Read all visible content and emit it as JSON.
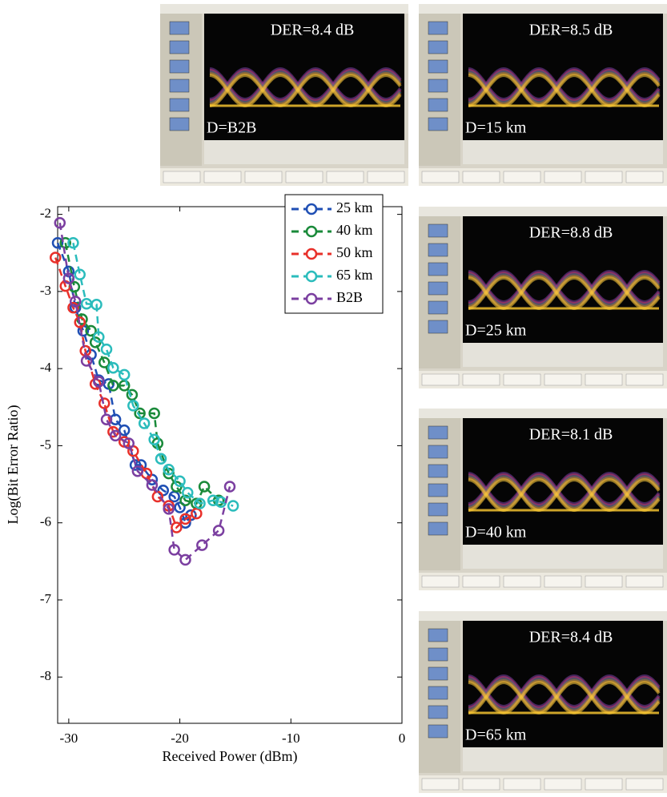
{
  "chart_data": {
    "type": "line",
    "xlabel": "Received Power (dBm)",
    "ylabel": "Log(Bit Error Ratio)",
    "xlim": [
      -31,
      0
    ],
    "xticks": [
      -30,
      -20,
      -10,
      0
    ],
    "ylim": [
      -8.6,
      -1.9
    ],
    "yticks": [
      -2,
      -3,
      -4,
      -5,
      -6,
      -7,
      -8
    ],
    "legend": "upper right",
    "dashed": true,
    "marker": "circle",
    "series": [
      {
        "name": "25 km",
        "color": "#1f4fb4",
        "x": [
          -31,
          -30,
          -29.4,
          -28.7,
          -28,
          -27.3,
          -26.4,
          -25.8,
          -25,
          -24,
          -23.5,
          -22.5,
          -21.5,
          -20.5,
          -20,
          -19.5,
          -19
        ],
        "values": [
          -2.37,
          -2.74,
          -3.21,
          -3.51,
          -3.82,
          -4.15,
          -4.2,
          -4.66,
          -4.8,
          -5.25,
          -5.25,
          -5.44,
          -5.58,
          -5.66,
          -5.8,
          -6.0,
          -5.9
        ]
      },
      {
        "name": "40 km",
        "color": "#1a8a3a",
        "x": [
          -30.3,
          -29.5,
          -28.8,
          -28,
          -27.6,
          -26.8,
          -26,
          -25,
          -24.3,
          -23.6,
          -22.3,
          -22,
          -21,
          -20.3,
          -19.5,
          -18.5,
          -17.8,
          -16.5
        ],
        "values": [
          -2.37,
          -2.94,
          -3.36,
          -3.51,
          -3.66,
          -3.92,
          -4.22,
          -4.22,
          -4.34,
          -4.58,
          -4.58,
          -4.97,
          -5.36,
          -5.53,
          -5.71,
          -5.75,
          -5.53,
          -5.71
        ]
      },
      {
        "name": "50 km",
        "color": "#e8302a",
        "x": [
          -31.2,
          -30.3,
          -29.6,
          -29,
          -28.5,
          -27.6,
          -26.8,
          -26,
          -25,
          -24.2,
          -23,
          -22,
          -21,
          -20.3,
          -19.5,
          -18.5
        ],
        "values": [
          -2.56,
          -2.93,
          -3.21,
          -3.4,
          -3.77,
          -4.2,
          -4.45,
          -4.82,
          -4.95,
          -5.07,
          -5.36,
          -5.66,
          -5.78,
          -6.06,
          -5.95,
          -5.88
        ]
      },
      {
        "name": "65 km",
        "color": "#2bbcbc",
        "x": [
          -29.6,
          -29,
          -28.4,
          -27.5,
          -27.3,
          -26.6,
          -26,
          -25,
          -24.2,
          -23.2,
          -22.3,
          -21.7,
          -21,
          -20,
          -19.3,
          -18.2,
          -17,
          -16.3,
          -15.2
        ],
        "values": [
          -2.37,
          -2.78,
          -3.16,
          -3.17,
          -3.59,
          -3.75,
          -3.99,
          -4.08,
          -4.48,
          -4.71,
          -4.92,
          -5.17,
          -5.31,
          -5.46,
          -5.61,
          -5.75,
          -5.71,
          -5.73,
          -5.78
        ]
      },
      {
        "name": "B2B",
        "color": "#7b3fa0",
        "x": [
          -30.8,
          -30,
          -29.4,
          -28.4,
          -27.3,
          -26.6,
          -25.8,
          -24.6,
          -23.8,
          -22.5,
          -21,
          -20.5,
          -19.5,
          -18,
          -16.5,
          -15.5
        ],
        "values": [
          -2.11,
          -2.83,
          -3.13,
          -3.9,
          -4.17,
          -4.66,
          -4.87,
          -4.97,
          -5.33,
          -5.51,
          -5.82,
          -6.35,
          -6.48,
          -6.29,
          -6.1,
          -5.53
        ]
      }
    ]
  },
  "eye_diagrams": [
    {
      "der": "DER=8.4 dB",
      "distance": "D=B2B"
    },
    {
      "der": "DER=8.5 dB",
      "distance": "D=15 km"
    },
    {
      "der": "DER=8.8 dB",
      "distance": "D=25 km"
    },
    {
      "der": "DER=8.1 dB",
      "distance": "D=40 km"
    },
    {
      "der": "DER=8.4 dB",
      "distance": "D=65 km"
    }
  ]
}
